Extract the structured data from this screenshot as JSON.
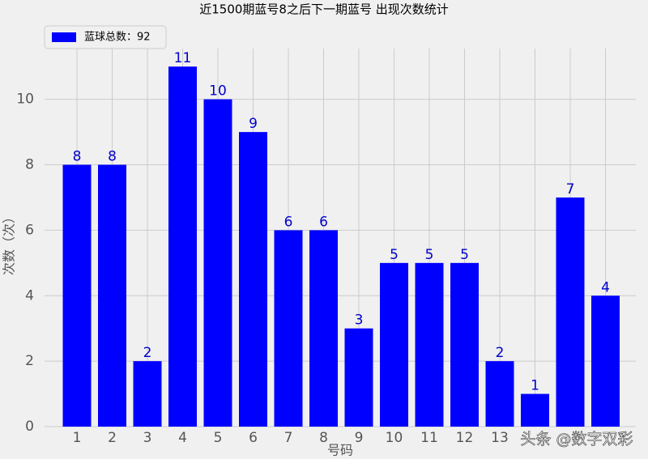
{
  "chart_data": {
    "type": "bar",
    "title": "近1500期蓝号8之后下一期蓝号 出现次数统计",
    "x_label": "号码",
    "y_label": "次数（次）",
    "categories": [
      "1",
      "2",
      "3",
      "4",
      "5",
      "6",
      "7",
      "8",
      "9",
      "10",
      "11",
      "12",
      "13",
      null,
      null,
      null
    ],
    "series": [
      {
        "name": "蓝球总数：92",
        "color": "#0000ff",
        "values": [
          8,
          8,
          2,
          11,
          10,
          9,
          6,
          6,
          3,
          5,
          5,
          5,
          2,
          1,
          7,
          4
        ]
      }
    ],
    "ylim": [
      0,
      11.55
    ],
    "yticks": [
      0,
      2,
      4,
      6,
      8,
      10
    ],
    "grid": true,
    "legend": "upper-left",
    "watermark": "头条 @数字双彩"
  }
}
